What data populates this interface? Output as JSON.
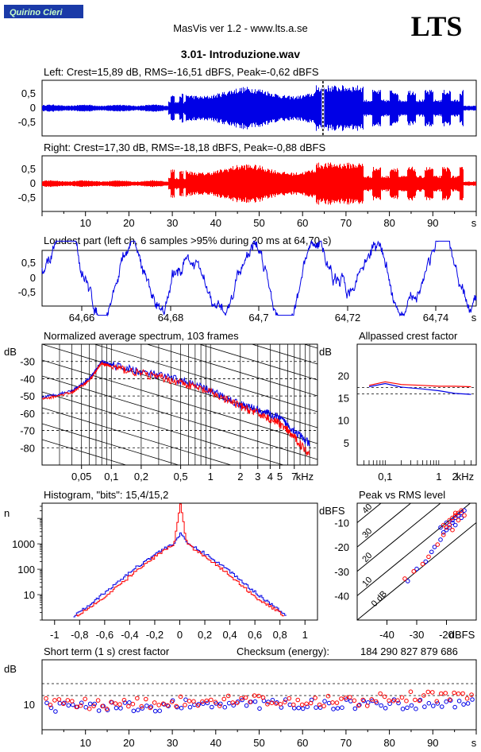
{
  "header": {
    "badge": "Quirino Cieri",
    "app_title": "MasVis ver 1.2 - www.lts.a.se",
    "logo": "LTS",
    "file_title": "3.01- Introduzione.wav"
  },
  "colors": {
    "left": "#0000e6",
    "right": "#ff0000",
    "badge_bg": "#1a3aa8"
  },
  "waveform_left": {
    "label": "Left: Crest=15,89 dB, RMS=-16,51 dBFS, Peak=-0,62 dBFS",
    "yticks": [
      "0,5",
      "0",
      "-0,5"
    ],
    "marker_s": 64.7
  },
  "waveform_right": {
    "label": "Right: Crest=17,30 dB, RMS=-18,18 dBFS, Peak=-0,88 dBFS",
    "yticks": [
      "0,5",
      "0",
      "-0,5"
    ],
    "xticks": [
      "10",
      "20",
      "30",
      "40",
      "50",
      "60",
      "70",
      "80",
      "90"
    ],
    "xunit": "s"
  },
  "loudest": {
    "label": "Loudest part (left  ch, 6 samples >95% during 20 ms at 64,70 s)",
    "yticks": [
      "0,5",
      "0",
      "-0,5"
    ],
    "xticks": [
      "64,66",
      "64,68",
      "64,7",
      "64,72",
      "64,74"
    ],
    "xunit": "s"
  },
  "spectrum": {
    "label": "Normalized average spectrum, 103 frames",
    "yunit": "dB",
    "yticks": [
      "-30",
      "-40",
      "-50",
      "-60",
      "-70",
      "-80"
    ],
    "xticks": [
      "0,05",
      "0,1",
      "0,2",
      "0,5",
      "1",
      "2",
      "3",
      "4",
      "5",
      "7"
    ],
    "xunit": "kHz"
  },
  "crest_factor": {
    "label": "Allpassed crest factor",
    "yunit": "dB",
    "yticks": [
      "20",
      "15",
      "10",
      "5"
    ],
    "xticks": [
      "0,1",
      "1",
      "2"
    ],
    "xunit": "kHz"
  },
  "histogram": {
    "label": "Histogram, \"bits\": 15,4/15,2",
    "yunit": "n",
    "yticks": [
      "1000",
      "100",
      "10"
    ],
    "xticks": [
      "-1",
      "-0,8",
      "-0,6",
      "-0,4",
      "-0,2",
      "0",
      "0,2",
      "0,4",
      "0,6",
      "0,8",
      "1"
    ]
  },
  "peak_rms": {
    "label": "Peak vs RMS level",
    "yunit": "dBFS",
    "yticks": [
      "-10",
      "-20",
      "-30",
      "-40"
    ],
    "xticks": [
      "-40",
      "-30",
      "-20"
    ],
    "xunit": "dBFS",
    "crest_lines": [
      "40",
      "30",
      "20",
      "10",
      "0 dB"
    ]
  },
  "short_term": {
    "label": "Short term (1 s) crest factor",
    "checksum_label": "Checksum (energy):",
    "checksum_value": "184 290 827 879 686",
    "yunit": "dB",
    "yticks": [
      "10"
    ],
    "xticks": [
      "10",
      "20",
      "30",
      "40",
      "50",
      "60",
      "70",
      "80",
      "90"
    ],
    "xunit": "s"
  },
  "chart_data": [
    {
      "type": "line",
      "title": "Left waveform",
      "x_range_s": [
        0,
        100
      ],
      "ylim": [
        -1,
        1
      ],
      "crest_db": 15.89,
      "rms_dbfs": -16.51,
      "peak_dbfs": -0.62,
      "marker_s": 64.7
    },
    {
      "type": "line",
      "title": "Right waveform",
      "x_range_s": [
        0,
        100
      ],
      "ylim": [
        -1,
        1
      ],
      "crest_db": 17.3,
      "rms_dbfs": -18.18,
      "peak_dbfs": -0.88
    },
    {
      "type": "line",
      "title": "Loudest part (left ch)",
      "x_range_s": [
        64.65,
        64.75
      ],
      "ylim": [
        -1,
        1
      ],
      "samples_over_95pct": 6,
      "duration_ms": 20,
      "at_s": 64.7
    },
    {
      "type": "line",
      "title": "Normalized average spectrum",
      "frames": 103,
      "xlabel": "kHz",
      "ylabel": "dB",
      "ylim": [
        -90,
        -20
      ],
      "series": [
        {
          "name": "left",
          "x": [
            0.02,
            0.04,
            0.06,
            0.08,
            0.1,
            0.2,
            0.5,
            1,
            2,
            3,
            5,
            7,
            10
          ],
          "values": [
            -51,
            -47,
            -40,
            -30,
            -32,
            -36,
            -41,
            -47,
            -55,
            -58,
            -63,
            -70,
            -78
          ]
        },
        {
          "name": "right",
          "x": [
            0.02,
            0.04,
            0.06,
            0.08,
            0.1,
            0.2,
            0.5,
            1,
            2,
            3,
            5,
            7,
            10
          ],
          "values": [
            -52,
            -48,
            -41,
            -31,
            -33,
            -37,
            -42,
            -48,
            -56,
            -60,
            -66,
            -74,
            -84
          ]
        }
      ]
    },
    {
      "type": "line",
      "title": "Allpassed crest factor",
      "xlabel": "kHz",
      "ylabel": "dB",
      "ylim": [
        0,
        25
      ],
      "series": [
        {
          "name": "left",
          "x": [
            0.05,
            0.1,
            0.2,
            0.5,
            1,
            2,
            4
          ],
          "values": [
            17.5,
            18.2,
            17.4,
            17.0,
            16.6,
            16.0,
            15.8
          ]
        },
        {
          "name": "right",
          "x": [
            0.05,
            0.1,
            0.2,
            0.5,
            1,
            2,
            4
          ],
          "values": [
            17.8,
            18.6,
            18.0,
            17.8,
            17.6,
            17.6,
            17.5
          ]
        }
      ],
      "reference_dashed": [
        17.3,
        15.9
      ]
    },
    {
      "type": "line",
      "title": "Histogram",
      "bits_left": 15.4,
      "bits_right": 15.2,
      "xlim": [
        -1,
        1
      ],
      "ylabel": "n",
      "series": [
        {
          "name": "left",
          "x": [
            -0.85,
            -0.6,
            -0.4,
            -0.2,
            -0.05,
            0,
            0.05,
            0.2,
            0.4,
            0.6,
            0.85
          ],
          "values": [
            1.5,
            12,
            80,
            400,
            1100,
            2500,
            1100,
            400,
            80,
            12,
            1.5
          ]
        },
        {
          "name": "right",
          "x": [
            -0.83,
            -0.6,
            -0.4,
            -0.2,
            -0.05,
            0,
            0.05,
            0.2,
            0.4,
            0.6,
            0.83
          ],
          "values": [
            1.5,
            8,
            55,
            320,
            1000,
            40000,
            1000,
            320,
            55,
            8,
            1.5
          ]
        }
      ]
    },
    {
      "type": "scatter",
      "title": "Peak vs RMS level",
      "xlabel": "dBFS",
      "ylabel": "dBFS",
      "xlim": [
        -50,
        -10
      ],
      "ylim": [
        -50,
        -2
      ],
      "crest_lines_db": [
        0,
        10,
        20,
        30,
        40
      ],
      "series": [
        {
          "name": "left",
          "points": [
            [
              -33,
              -34
            ],
            [
              -30,
              -29
            ],
            [
              -27,
              -26
            ],
            [
              -25,
              -22
            ],
            [
              -24,
              -20
            ],
            [
              -22,
              -17
            ],
            [
              -21,
              -14
            ],
            [
              -20,
              -13
            ],
            [
              -19,
              -12
            ],
            [
              -18,
              -10
            ],
            [
              -18,
              -9
            ],
            [
              -17,
              -8
            ],
            [
              -17,
              -11
            ],
            [
              -16,
              -7
            ],
            [
              -15,
              -6
            ],
            [
              -15,
              -8
            ],
            [
              -14,
              -5
            ],
            [
              -20,
              -10
            ],
            [
              -22,
              -12
            ]
          ]
        },
        {
          "name": "right",
          "points": [
            [
              -34,
              -33
            ],
            [
              -31,
              -30
            ],
            [
              -28,
              -27
            ],
            [
              -26,
              -24
            ],
            [
              -23,
              -19
            ],
            [
              -21,
              -15
            ],
            [
              -20,
              -12
            ],
            [
              -19,
              -11
            ],
            [
              -18,
              -8
            ],
            [
              -17,
              -7
            ],
            [
              -16,
              -9
            ],
            [
              -16,
              -6
            ],
            [
              -15,
              -5
            ],
            [
              -14,
              -7
            ],
            [
              -19,
              -9
            ],
            [
              -21,
              -11
            ],
            [
              -18,
              -13
            ],
            [
              -17,
              -6
            ]
          ]
        }
      ]
    },
    {
      "type": "scatter",
      "title": "Short term (1 s) crest factor",
      "xlabel": "s",
      "ylabel": "dB",
      "xlim": [
        0,
        100
      ],
      "ylim": [
        0,
        25
      ],
      "dashed_levels": [
        20,
        15
      ]
    }
  ]
}
